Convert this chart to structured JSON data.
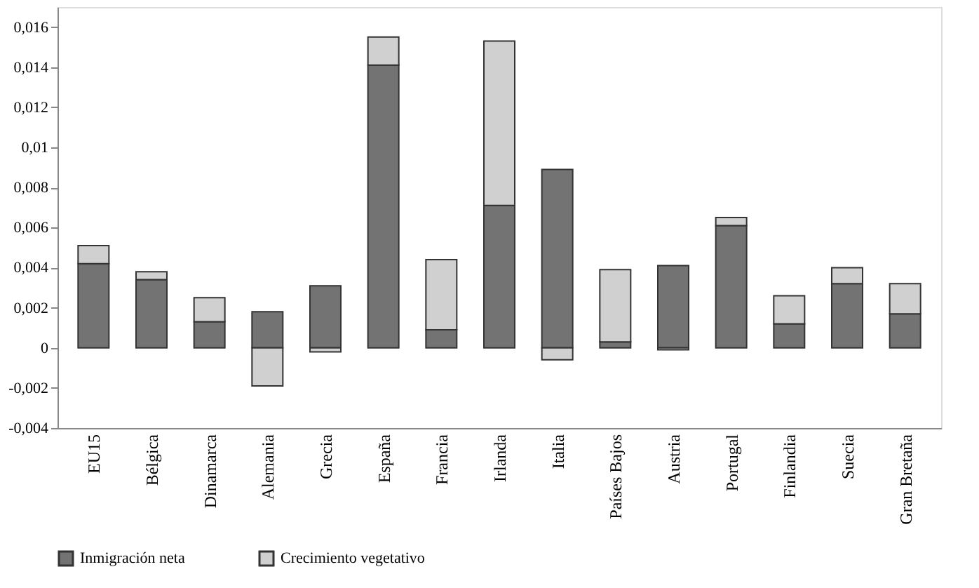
{
  "chart_data": {
    "type": "bar",
    "stacked": true,
    "categories": [
      "EU15",
      "Bélgica",
      "Dinamarca",
      "Alemania",
      "Grecia",
      "España",
      "Francia",
      "Irlanda",
      "Italia",
      "Países Bajos",
      "Austria",
      "Portugal",
      "Finlandia",
      "Suecia",
      "Gran Bretaña"
    ],
    "series": [
      {
        "name": "Inmigración neta",
        "color": "#737373",
        "values": [
          0.0042,
          0.0034,
          0.0013,
          0.0018,
          0.0031,
          0.0141,
          0.0009,
          0.0071,
          0.0089,
          0.0003,
          0.0041,
          0.0061,
          0.0012,
          0.0032,
          0.0017
        ]
      },
      {
        "name": "Crecimiento vegetativo",
        "color": "#d0d0d0",
        "values": [
          0.0009,
          0.0004,
          0.0012,
          -0.0019,
          -0.0002,
          0.0014,
          0.0035,
          0.0082,
          -0.0006,
          0.0036,
          -0.0001,
          0.0004,
          0.0014,
          0.0008,
          0.0015
        ]
      }
    ],
    "ylim": [
      -0.004,
      0.017
    ],
    "yticks": [
      {
        "value": -0.004,
        "label": "-0,004"
      },
      {
        "value": -0.002,
        "label": "-0,002"
      },
      {
        "value": 0,
        "label": "0"
      },
      {
        "value": 0.002,
        "label": "0,002"
      },
      {
        "value": 0.004,
        "label": "0,004"
      },
      {
        "value": 0.006,
        "label": "0,006"
      },
      {
        "value": 0.008,
        "label": "0,008"
      },
      {
        "value": 0.01,
        "label": "0,01"
      },
      {
        "value": 0.012,
        "label": "0,012"
      },
      {
        "value": 0.014,
        "label": "0,014"
      },
      {
        "value": 0.016,
        "label": "0,016"
      }
    ],
    "grid": false,
    "legend": "bottom"
  }
}
